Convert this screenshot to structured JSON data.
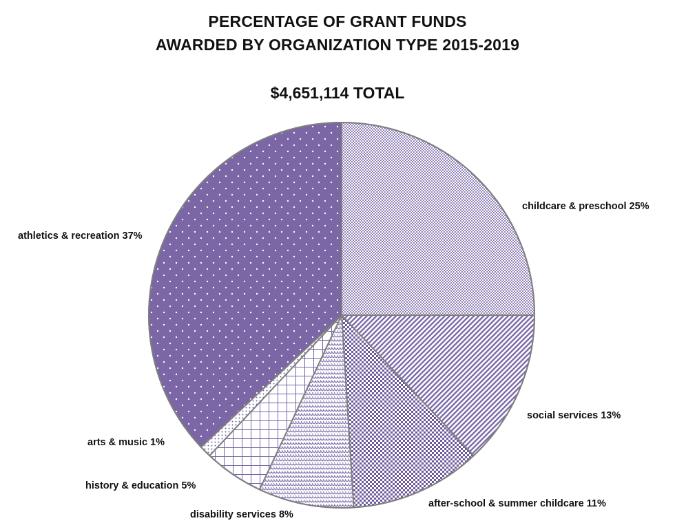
{
  "chart_data": {
    "type": "pie",
    "title": "PERCENTAGE OF GRANT FUNDS",
    "title_line2": "AWARDED BY ORGANIZATION TYPE 2015-2019",
    "subtitle": "$4,651,114 TOTAL",
    "start_angle_deg": 0,
    "direction": "clockwise",
    "slices": [
      {
        "label": "childcare & preschool 25%",
        "value": 25,
        "color": "#9b8bbd",
        "pattern": "fine-check"
      },
      {
        "label": "social services 13%",
        "value": 13,
        "color": "#7a68a8",
        "pattern": "diag-stripe"
      },
      {
        "label": "after-school & summer childcare 11%",
        "value": 11,
        "color": "#6d5a9c",
        "pattern": "small-squares"
      },
      {
        "label": "disability services 8%",
        "value": 8,
        "color": "#8878b0",
        "pattern": "zigzag"
      },
      {
        "label": "history & education 5%",
        "value": 5,
        "color": "#7763a8",
        "pattern": "grid"
      },
      {
        "label": "arts & music 1%",
        "value": 1,
        "color": "#7763a8",
        "pattern": "dots-light"
      },
      {
        "label": "athletics & recreation 37%",
        "value": 37,
        "color": "#7b66a6",
        "pattern": "dots"
      }
    ]
  }
}
